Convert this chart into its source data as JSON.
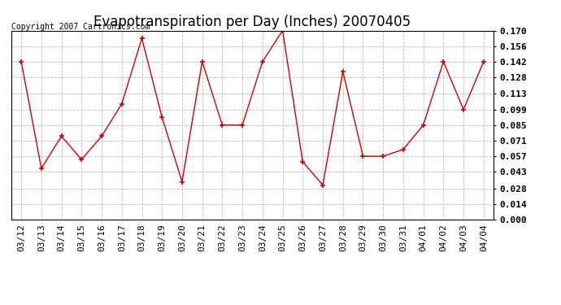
{
  "title": "Evapotranspiration per Day (Inches) 20070405",
  "copyright": "Copyright 2007 Cartronics.com",
  "dates": [
    "03/12",
    "03/13",
    "03/14",
    "03/15",
    "03/16",
    "03/17",
    "03/18",
    "03/19",
    "03/20",
    "03/21",
    "03/22",
    "03/23",
    "03/24",
    "03/25",
    "03/26",
    "03/27",
    "03/28",
    "03/29",
    "03/30",
    "03/31",
    "04/01",
    "04/02",
    "04/03",
    "04/04"
  ],
  "values": [
    0.142,
    0.046,
    0.075,
    0.054,
    0.075,
    0.104,
    0.163,
    0.092,
    0.034,
    0.142,
    0.085,
    0.085,
    0.142,
    0.17,
    0.052,
    0.031,
    0.133,
    0.057,
    0.057,
    0.063,
    0.085,
    0.142,
    0.099,
    0.142
  ],
  "line_color": "#cc0000",
  "marker": "+",
  "ylim": [
    0.0,
    0.17
  ],
  "yticks": [
    0.0,
    0.014,
    0.028,
    0.043,
    0.057,
    0.071,
    0.085,
    0.099,
    0.113,
    0.128,
    0.142,
    0.156,
    0.17
  ],
  "background_color": "#ffffff",
  "grid_color": "#bbbbbb",
  "title_fontsize": 12,
  "tick_fontsize": 8,
  "copyright_fontsize": 7
}
